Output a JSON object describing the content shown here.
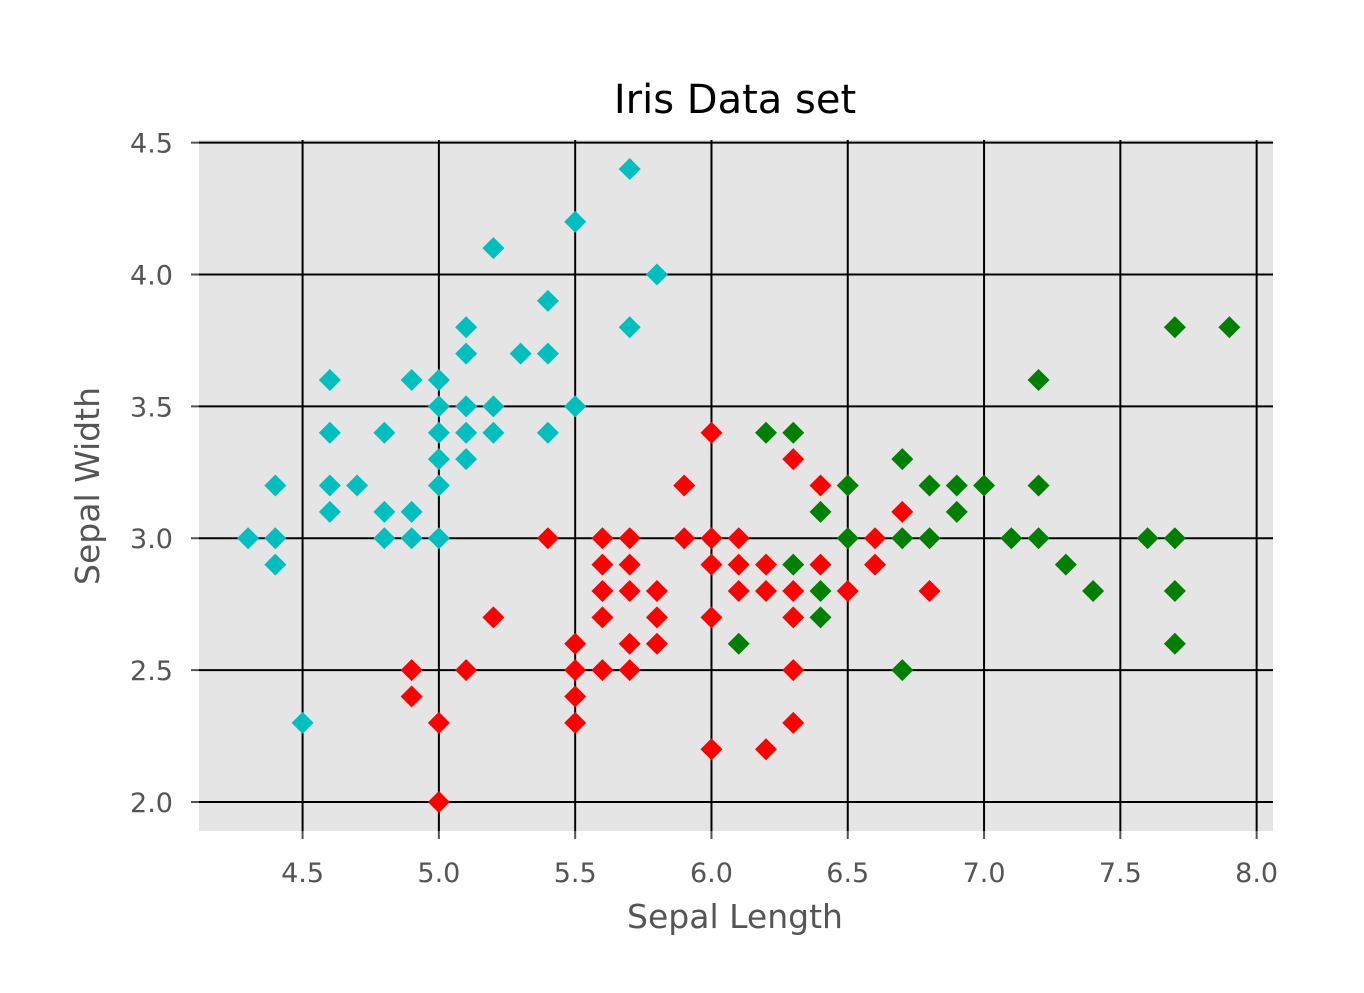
{
  "chart_data": {
    "type": "scatter",
    "title": "Iris Data set",
    "xlabel": "Sepal Length",
    "ylabel": "Sepal Width",
    "xlim": [
      4.12,
      8.06
    ],
    "ylim": [
      1.89,
      4.51
    ],
    "xticks": [
      "4.5",
      "5.0",
      "5.5",
      "6.0",
      "6.5",
      "7.0",
      "7.5",
      "8.0"
    ],
    "yticks": [
      "2.0",
      "2.5",
      "3.0",
      "3.5",
      "4.0",
      "4.5"
    ],
    "grid": true,
    "marker": "diamond",
    "background": "#e5e5e5",
    "grid_color": "#000000",
    "series": [
      {
        "color": "#00bfbf",
        "points": [
          [
            4.3,
            3.0
          ],
          [
            4.4,
            3.0
          ],
          [
            4.4,
            2.9
          ],
          [
            4.4,
            3.2
          ],
          [
            4.5,
            2.3
          ],
          [
            4.6,
            3.6
          ],
          [
            4.6,
            3.4
          ],
          [
            4.6,
            3.2
          ],
          [
            4.6,
            3.1
          ],
          [
            4.7,
            3.2
          ],
          [
            4.8,
            3.4
          ],
          [
            4.8,
            3.1
          ],
          [
            4.8,
            3.0
          ],
          [
            4.9,
            3.6
          ],
          [
            4.9,
            3.1
          ],
          [
            4.9,
            3.0
          ],
          [
            5.0,
            3.6
          ],
          [
            5.0,
            3.5
          ],
          [
            5.0,
            3.4
          ],
          [
            5.0,
            3.3
          ],
          [
            5.0,
            3.2
          ],
          [
            5.0,
            3.0
          ],
          [
            5.1,
            3.8
          ],
          [
            5.1,
            3.7
          ],
          [
            5.1,
            3.5
          ],
          [
            5.1,
            3.4
          ],
          [
            5.1,
            3.3
          ],
          [
            5.2,
            4.1
          ],
          [
            5.2,
            3.5
          ],
          [
            5.2,
            3.4
          ],
          [
            5.3,
            3.7
          ],
          [
            5.4,
            3.9
          ],
          [
            5.4,
            3.7
          ],
          [
            5.4,
            3.4
          ],
          [
            5.5,
            4.2
          ],
          [
            5.5,
            3.5
          ],
          [
            5.7,
            4.4
          ],
          [
            5.7,
            3.8
          ],
          [
            5.8,
            4.0
          ]
        ]
      },
      {
        "color": "#ff0000",
        "points": [
          [
            4.9,
            2.5
          ],
          [
            4.9,
            2.4
          ],
          [
            5.0,
            2.3
          ],
          [
            5.0,
            2.0
          ],
          [
            5.1,
            2.5
          ],
          [
            5.2,
            2.7
          ],
          [
            5.4,
            3.0
          ],
          [
            5.5,
            2.6
          ],
          [
            5.5,
            2.5
          ],
          [
            5.5,
            2.4
          ],
          [
            5.5,
            2.3
          ],
          [
            5.6,
            3.0
          ],
          [
            5.6,
            2.9
          ],
          [
            5.6,
            2.8
          ],
          [
            5.6,
            2.7
          ],
          [
            5.6,
            2.5
          ],
          [
            5.7,
            3.0
          ],
          [
            5.7,
            2.9
          ],
          [
            5.7,
            2.8
          ],
          [
            5.7,
            2.6
          ],
          [
            5.7,
            2.5
          ],
          [
            5.8,
            2.8
          ],
          [
            5.8,
            2.7
          ],
          [
            5.8,
            2.6
          ],
          [
            5.9,
            3.2
          ],
          [
            5.9,
            3.0
          ],
          [
            6.0,
            3.4
          ],
          [
            6.0,
            3.0
          ],
          [
            6.0,
            2.9
          ],
          [
            6.0,
            2.7
          ],
          [
            6.0,
            2.2
          ],
          [
            6.1,
            3.0
          ],
          [
            6.1,
            2.9
          ],
          [
            6.1,
            2.8
          ],
          [
            6.2,
            2.9
          ],
          [
            6.2,
            2.8
          ],
          [
            6.2,
            2.2
          ],
          [
            6.3,
            3.3
          ],
          [
            6.3,
            2.8
          ],
          [
            6.3,
            2.7
          ],
          [
            6.3,
            2.5
          ],
          [
            6.3,
            2.3
          ],
          [
            6.4,
            3.2
          ],
          [
            6.4,
            2.9
          ],
          [
            6.5,
            2.8
          ],
          [
            6.6,
            3.0
          ],
          [
            6.6,
            2.9
          ],
          [
            6.7,
            3.1
          ],
          [
            6.8,
            2.8
          ]
        ]
      },
      {
        "color": "#008000",
        "points": [
          [
            6.1,
            2.6
          ],
          [
            6.2,
            3.4
          ],
          [
            6.3,
            3.4
          ],
          [
            6.3,
            2.9
          ],
          [
            6.4,
            3.1
          ],
          [
            6.4,
            2.8
          ],
          [
            6.4,
            2.7
          ],
          [
            6.5,
            3.2
          ],
          [
            6.5,
            3.0
          ],
          [
            6.7,
            3.3
          ],
          [
            6.7,
            3.0
          ],
          [
            6.7,
            2.5
          ],
          [
            6.8,
            3.2
          ],
          [
            6.8,
            3.0
          ],
          [
            6.9,
            3.2
          ],
          [
            6.9,
            3.1
          ],
          [
            7.0,
            3.2
          ],
          [
            7.1,
            3.0
          ],
          [
            7.2,
            3.6
          ],
          [
            7.2,
            3.2
          ],
          [
            7.2,
            3.0
          ],
          [
            7.3,
            2.9
          ],
          [
            7.4,
            2.8
          ],
          [
            7.6,
            3.0
          ],
          [
            7.7,
            3.8
          ],
          [
            7.7,
            3.0
          ],
          [
            7.7,
            2.8
          ],
          [
            7.7,
            2.6
          ],
          [
            7.9,
            3.8
          ]
        ]
      }
    ]
  }
}
